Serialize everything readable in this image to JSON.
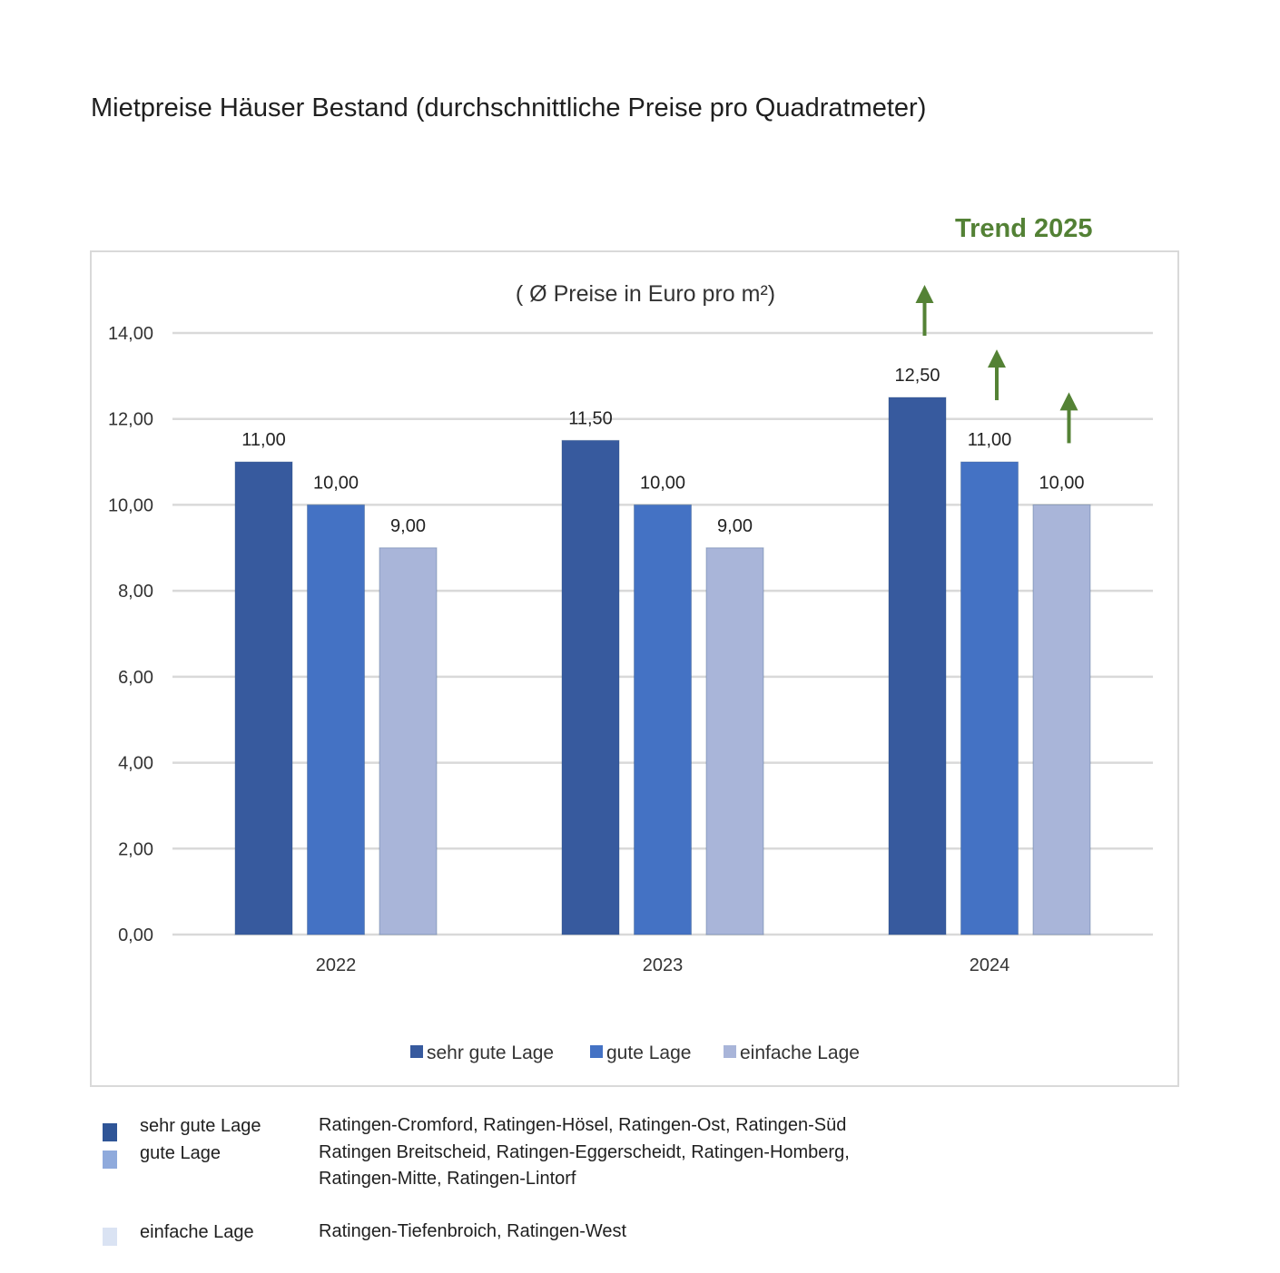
{
  "page_title": "Mietpreise Häuser Bestand (durchschnittliche Preise pro Quadratmeter)",
  "trend_label": "Trend 2025",
  "chart_data": {
    "type": "bar",
    "subtitle": "( Ø Preise in Euro pro m²)",
    "categories": [
      "2022",
      "2023",
      "2024"
    ],
    "series": [
      {
        "name": "sehr gute Lage",
        "values": [
          11.0,
          11.5,
          12.5
        ],
        "labels": [
          "11,00",
          "11,50",
          "12,50"
        ],
        "color": "#375A9E"
      },
      {
        "name": "gute Lage",
        "values": [
          10.0,
          10.0,
          11.0
        ],
        "labels": [
          "10,00",
          "10,00",
          "11,00"
        ],
        "color": "#4472C4"
      },
      {
        "name": "einfache Lage",
        "values": [
          9.0,
          9.0,
          10.0
        ],
        "labels": [
          "9,00",
          "9,00",
          "10,00"
        ],
        "color": "#A9B5D9"
      }
    ],
    "yticks": [
      "0,00",
      "2,00",
      "4,00",
      "6,00",
      "8,00",
      "10,00",
      "12,00",
      "14,00"
    ],
    "ylim": [
      0,
      14
    ],
    "grid": true,
    "legend": "bottom",
    "trend_arrows": {
      "category": "2024",
      "direction": "up",
      "color": "#548235"
    }
  },
  "key_table": [
    {
      "name": "sehr gute Lage",
      "districts": "Ratingen-Cromford, Ratingen-Hösel, Ratingen-Ost, Ratingen-Süd",
      "color": "#2F5597"
    },
    {
      "name": "gute Lage",
      "districts": "Ratingen Breitscheid, Ratingen-Eggerscheidt, Ratingen-Homberg, Ratingen-Mitte, Ratingen-Lintorf",
      "color": "#8FAADC"
    },
    {
      "name": "einfache Lage",
      "districts": "Ratingen-Tiefenbroich, Ratingen-West",
      "color": "#DAE3F3"
    }
  ]
}
